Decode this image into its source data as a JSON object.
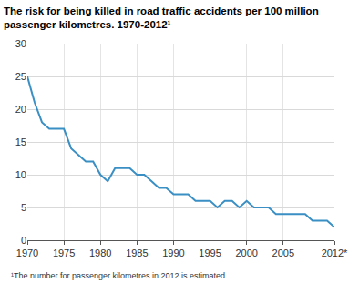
{
  "chart_data": {
    "type": "line",
    "title": "The risk for being killed in road traffic accidents per 100 million\npassenger kilometres. 1970-2012¹",
    "x": [
      1970,
      1971,
      1972,
      1973,
      1974,
      1975,
      1976,
      1977,
      1978,
      1979,
      1980,
      1981,
      1982,
      1983,
      1984,
      1985,
      1986,
      1987,
      1988,
      1989,
      1990,
      1991,
      1992,
      1993,
      1994,
      1995,
      1996,
      1997,
      1998,
      1999,
      2000,
      2001,
      2002,
      2003,
      2004,
      2005,
      2006,
      2007,
      2008,
      2009,
      2010,
      2011,
      2012
    ],
    "values": [
      25,
      21,
      18,
      17,
      17,
      17,
      14,
      13,
      12,
      12,
      10,
      9,
      11,
      11,
      11,
      10,
      10,
      9,
      8,
      8,
      7,
      7,
      7,
      6,
      6,
      6,
      5,
      6,
      6,
      5,
      6,
      5,
      5,
      5,
      4,
      4,
      4,
      4,
      4,
      3,
      3,
      3,
      2
    ],
    "color": "#3a8fc4",
    "xlim": [
      1970,
      2012
    ],
    "xticks": [
      1970,
      1975,
      1980,
      1985,
      1990,
      1995,
      2000,
      2005,
      {
        "value": 2012,
        "label": "2012*"
      }
    ],
    "ylim": [
      0,
      30
    ],
    "yticks": [
      0,
      5,
      10,
      15,
      20,
      25,
      30
    ],
    "grid": true,
    "annotations": [
      "¹The number for passenger kilometres in 2012 is estimated."
    ]
  }
}
